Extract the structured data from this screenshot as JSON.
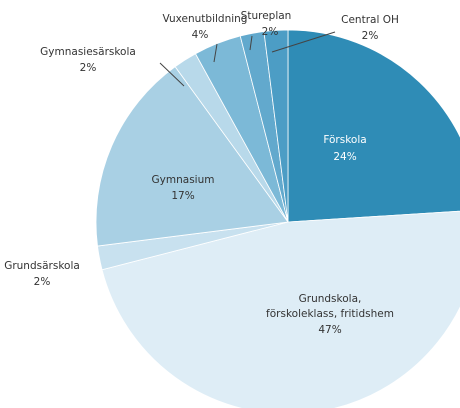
{
  "chart_data": {
    "type": "pie",
    "categories": [
      "Förskola",
      "Grundskola,\nförskoleklass, fritidshem",
      "Grundsärskola",
      "Gymnasium",
      "Gymnasiesärskola",
      "Vuxenutbildning",
      "Stureplan",
      "Central OH"
    ],
    "values": [
      24,
      47,
      2,
      17,
      2,
      4,
      2,
      2
    ],
    "value_labels": [
      "24%",
      "47%",
      "2%",
      "17%",
      "2%",
      "4%",
      "2%",
      "2%"
    ],
    "colors": [
      "#2f8cb6",
      "#deedf6",
      "#c8e1ef",
      "#a9d0e4",
      "#b8d9ea",
      "#7cb9d7",
      "#62a9cd",
      "#4c9dc5"
    ]
  }
}
